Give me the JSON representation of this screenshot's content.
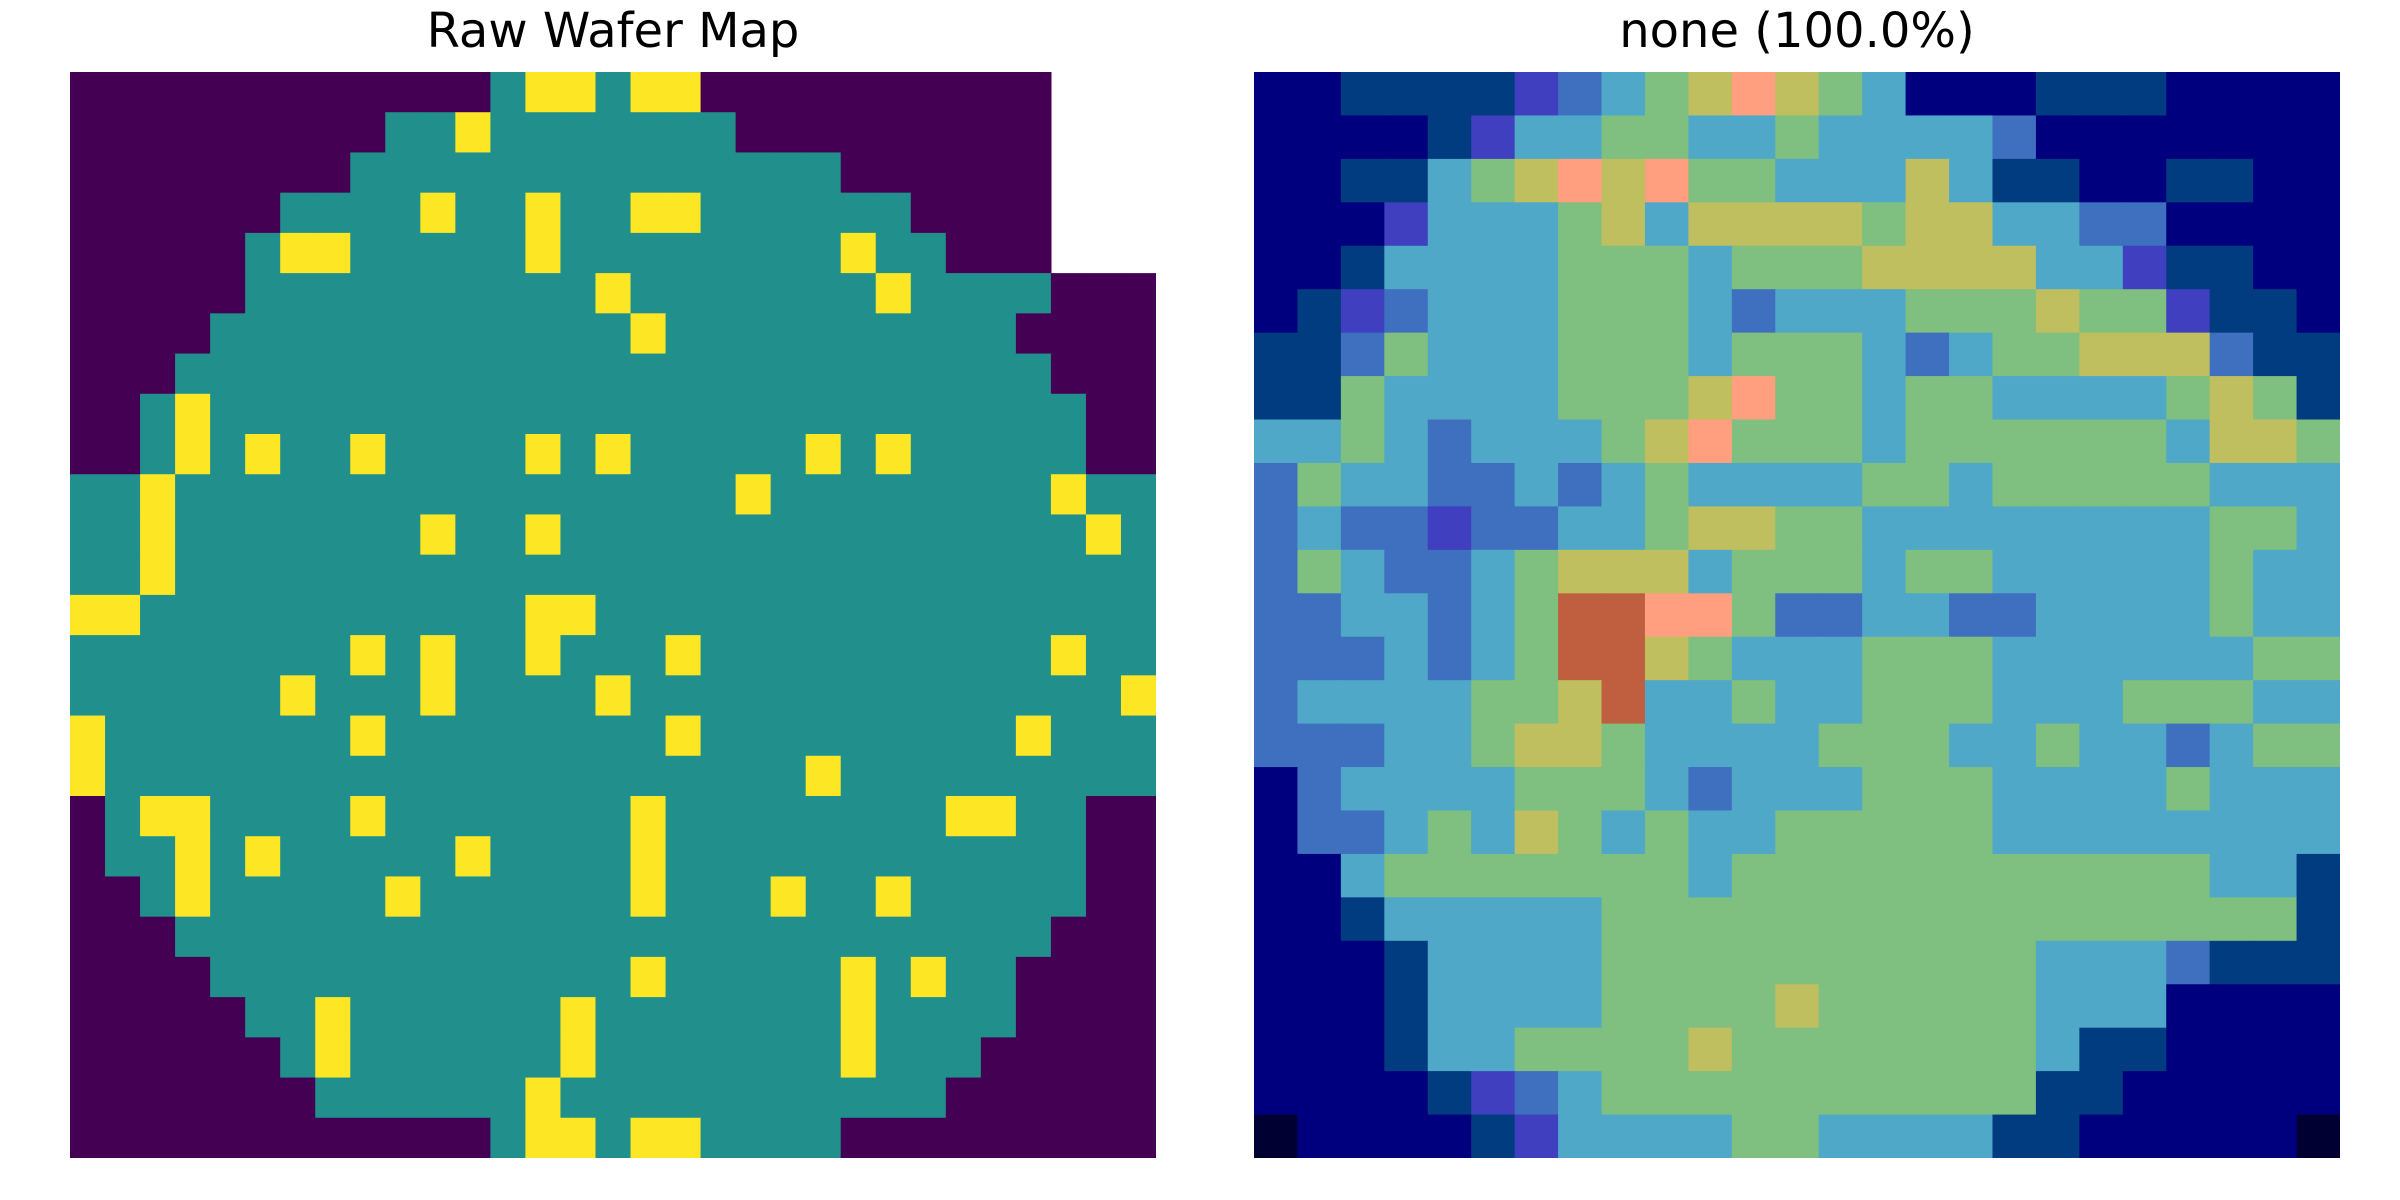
{
  "chart_data": [
    {
      "type": "heatmap",
      "title": "Raw Wafer Map",
      "rows": [
        "0000000000001221220000000000",
        "0000000001121111111000000000",
        "0000000011111111111111000000",
        "0000001111211211221111110000",
        "0000012211111211111111211000",
        "0000011111111112111111121111000",
        "0000111111111111211111111110000",
        "0001111111111111111111111111000",
        "0012111111111111111111111111100",
        "0012121121111212111112121111100",
        "1121111111111111111211111111211",
        "1121111111211211111111111111121",
        "1121111111111111111111111111111",
        "2211111111111221111111111111111",
        "1111111121211211121111111111211",
        "1111112111211112111111111111112",
        "2111111121111111121111111112111",
        "2111111111111111111112111111111",
        "0122111121111111211111111221100",
        "0112121111121111211111111111100",
        "0012111112111111211121121111100",
        "0001111111111111111111111111000",
        "0000111111111111211111212110000",
        "0000011211111121111111211110000",
        "0000001211111121111111211100000",
        "0000000111111211111111111000000",
        "0000000000001221221111000000000"
      ],
      "colors": {
        "0": "#440154",
        "1": "#21908c",
        "2": "#fde725"
      }
    },
    {
      "type": "heatmap",
      "title": "none (100.0%)",
      "rows": [
        "1122223456787651112221111",
        "1111235566556555541111111",
        "1122567878665557522112211",
        "1113555675777767755441111",
        "1125555666566677775532211",
        "1234555666545556667663221",
        "2246555666566654566777422",
        "2265555666786656655556762",
        "5565455567866656666665776",
        "4655445456555566566666555",
        "4544344556776655555555665",
        "4654456777566656655555655",
        "4455456998864455445555655",
        "4445456997655566655555566",
        "4555566795565566655566655",
        "4445567765555666556554566",
        "1455556665455566655556555",
        "1445657656556666655555555",
        "1156666666566666666666552",
        "1125555566666666666666662",
        "1112555566666666665554222",
        "1112555566667666665551111",
        "1112556666766666665221111",
        "1111234566666666662211111",
        "0111123555566555522111110"
      ],
      "colors": {
        "0": "#000033",
        "1": "#00007f",
        "2": "#003c7f",
        "3": "#3f3fbf",
        "4": "#3f6fbf",
        "5": "#4fa8c8",
        "6": "#7fbf7f",
        "7": "#bfbf5f",
        "8": "#ff9f7f",
        "9": "#bf5f3f"
      }
    }
  ]
}
